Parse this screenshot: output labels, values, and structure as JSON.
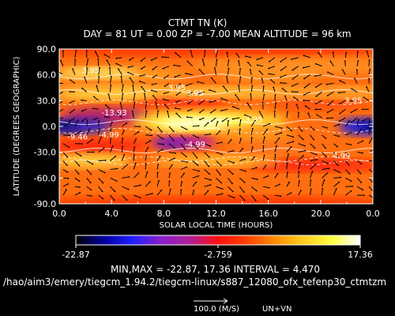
{
  "header": {
    "title": "CTMT TN (K)",
    "subtitle": "DAY =   81   UT =   0.00   ZP =   -7.00   MEAN ALTITUDE =   96 km"
  },
  "chart_data": {
    "type": "heatmap",
    "title": "CTMT TN (K)",
    "xlabel": "SOLAR LOCAL TIME (HOURS)",
    "ylabel": "LATITUDE (DEGREES GEOGRAPHIC)",
    "xlim": [
      0,
      24
    ],
    "ylim": [
      -90,
      90
    ],
    "x_ticks": [
      "0.0",
      "4.0",
      "8.0",
      "12.0",
      "16.0",
      "20.0",
      "0.0"
    ],
    "y_ticks": [
      "-90.0",
      "-60.0",
      "-30.0",
      "0.0",
      "30.0",
      "60.0",
      "90.0"
    ],
    "colorbar": {
      "min_label": "-22.87",
      "mid_label": "-2.759",
      "max_label": "17.36"
    },
    "min": -22.87,
    "max": 17.36,
    "interval": 4.47,
    "contour_labels": [
      {
        "text": "-13.93",
        "x": 4.2,
        "y": 13
      },
      {
        "text": "-4.99",
        "x": 3.8,
        "y": -13
      },
      {
        "text": "-9.46",
        "x": 1.4,
        "y": -15
      },
      {
        "text": "3.95",
        "x": 2.4,
        "y": 62
      },
      {
        "text": "3.95",
        "x": 14.9,
        "y": 5
      },
      {
        "text": "3.95",
        "x": 9.0,
        "y": 42
      },
      {
        "text": "-4.99",
        "x": 10.4,
        "y": -24
      },
      {
        "text": "3.95",
        "x": 10.4,
        "y": 36
      },
      {
        "text": "4.99",
        "x": 21.6,
        "y": -37
      },
      {
        "text": "3.95",
        "x": 22.5,
        "y": 27
      }
    ]
  },
  "footer": {
    "minmax_line": "MIN,MAX =       -22.87,        17.36  INTERVAL =         4.470",
    "path": "/hao/aim3/emery/tiegcm_1.94.2/tiegcm-linux/s887_12080_ofx_tefenp30_ctmtzm",
    "vector_scale_label": "100.0 (M/S)",
    "vector_name": "UN+VN"
  }
}
